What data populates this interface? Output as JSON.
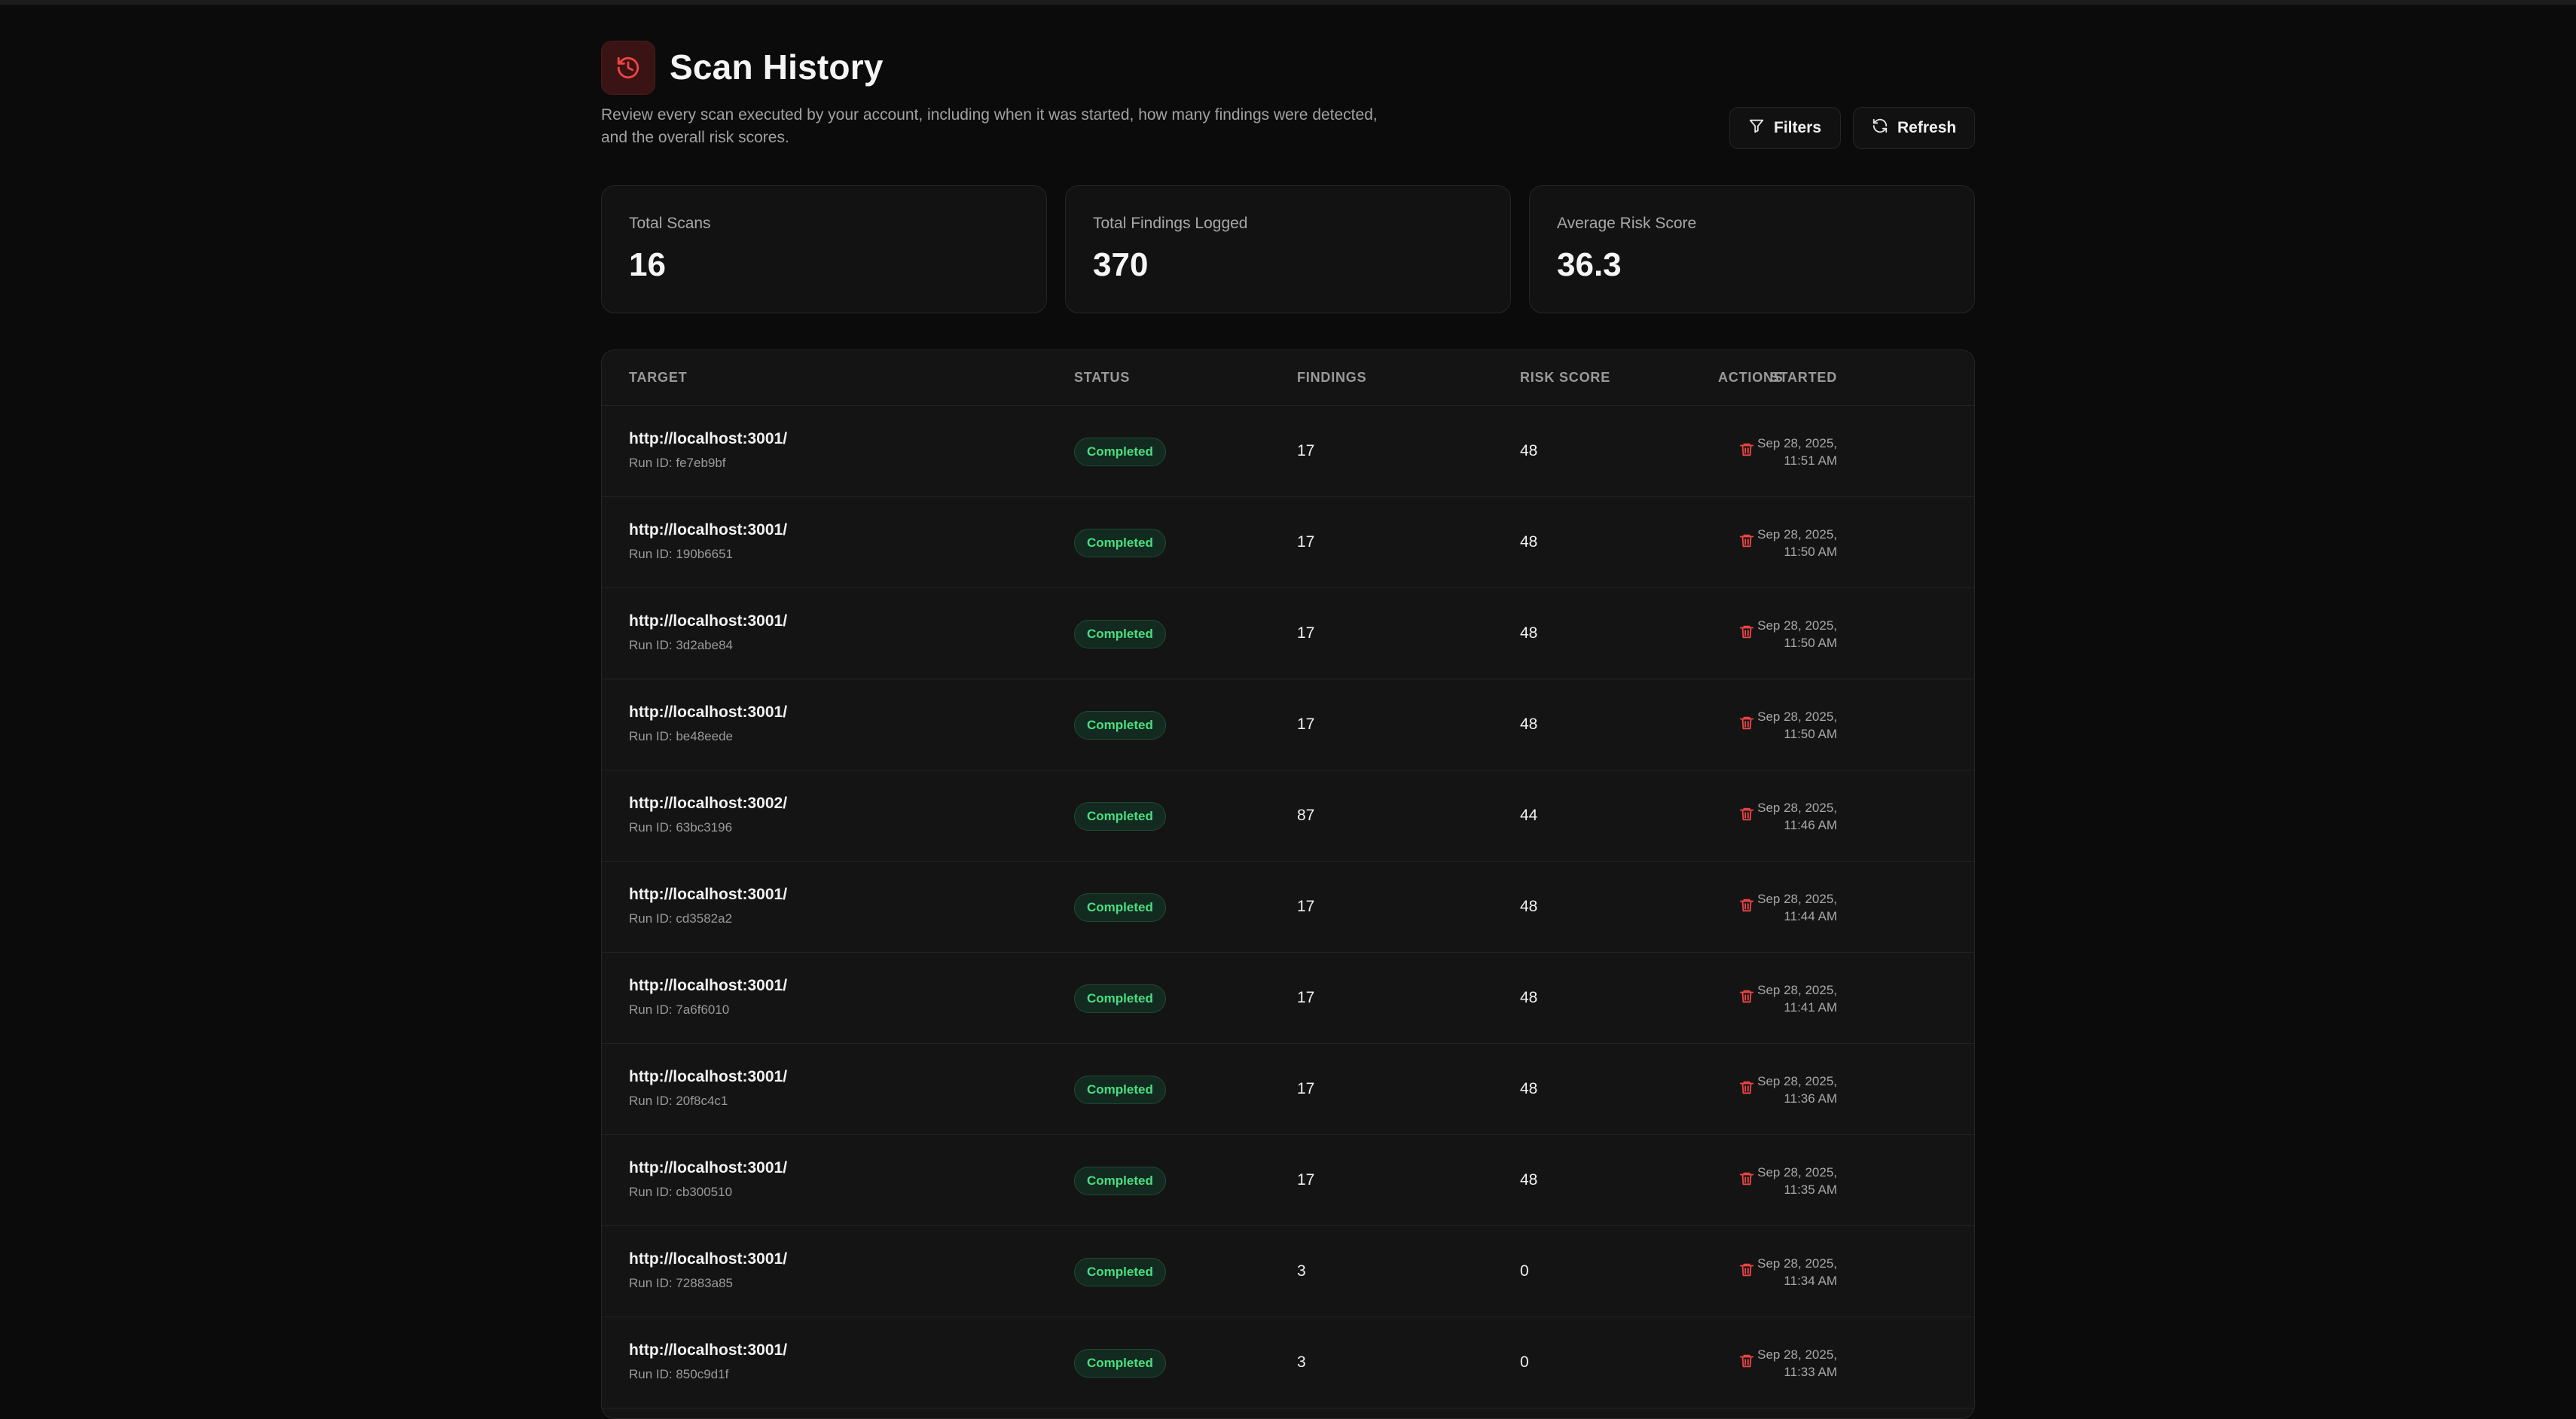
{
  "header": {
    "title": "Scan History",
    "subtitle": "Review every scan executed by your account, including when it was started, how many findings were detected, and the overall risk scores.",
    "filters_label": "Filters",
    "refresh_label": "Refresh",
    "icon": "history-icon"
  },
  "stats": [
    {
      "label": "Total Scans",
      "value": "16"
    },
    {
      "label": "Total Findings Logged",
      "value": "370"
    },
    {
      "label": "Average Risk Score",
      "value": "36.3"
    }
  ],
  "table": {
    "columns": [
      "TARGET",
      "STATUS",
      "FINDINGS",
      "RISK SCORE",
      "STARTED",
      "ACTIONS"
    ],
    "rows": [
      {
        "target": "http://localhost:3001/",
        "run_id": "Run ID: fe7eb9bf",
        "status": "Completed",
        "findings": "17",
        "risk": "48",
        "date": "Sep 28, 2025,",
        "time": "11:51 AM"
      },
      {
        "target": "http://localhost:3001/",
        "run_id": "Run ID: 190b6651",
        "status": "Completed",
        "findings": "17",
        "risk": "48",
        "date": "Sep 28, 2025,",
        "time": "11:50 AM"
      },
      {
        "target": "http://localhost:3001/",
        "run_id": "Run ID: 3d2abe84",
        "status": "Completed",
        "findings": "17",
        "risk": "48",
        "date": "Sep 28, 2025,",
        "time": "11:50 AM"
      },
      {
        "target": "http://localhost:3001/",
        "run_id": "Run ID: be48eede",
        "status": "Completed",
        "findings": "17",
        "risk": "48",
        "date": "Sep 28, 2025,",
        "time": "11:50 AM"
      },
      {
        "target": "http://localhost:3002/",
        "run_id": "Run ID: 63bc3196",
        "status": "Completed",
        "findings": "87",
        "risk": "44",
        "date": "Sep 28, 2025,",
        "time": "11:46 AM"
      },
      {
        "target": "http://localhost:3001/",
        "run_id": "Run ID: cd3582a2",
        "status": "Completed",
        "findings": "17",
        "risk": "48",
        "date": "Sep 28, 2025,",
        "time": "11:44 AM"
      },
      {
        "target": "http://localhost:3001/",
        "run_id": "Run ID: 7a6f6010",
        "status": "Completed",
        "findings": "17",
        "risk": "48",
        "date": "Sep 28, 2025,",
        "time": "11:41 AM"
      },
      {
        "target": "http://localhost:3001/",
        "run_id": "Run ID: 20f8c4c1",
        "status": "Completed",
        "findings": "17",
        "risk": "48",
        "date": "Sep 28, 2025,",
        "time": "11:36 AM"
      },
      {
        "target": "http://localhost:3001/",
        "run_id": "Run ID: cb300510",
        "status": "Completed",
        "findings": "17",
        "risk": "48",
        "date": "Sep 28, 2025,",
        "time": "11:35 AM"
      },
      {
        "target": "http://localhost:3001/",
        "run_id": "Run ID: 72883a85",
        "status": "Completed",
        "findings": "3",
        "risk": "0",
        "date": "Sep 28, 2025,",
        "time": "11:34 AM"
      },
      {
        "target": "http://localhost:3001/",
        "run_id": "Run ID: 850c9d1f",
        "status": "Completed",
        "findings": "3",
        "risk": "0",
        "date": "Sep 28, 2025,",
        "time": "11:33 AM"
      }
    ]
  },
  "colors": {
    "background": "#0b0b0b",
    "card": "#121212",
    "accent_red": "#ef4444",
    "status_green": "#4ade80"
  }
}
